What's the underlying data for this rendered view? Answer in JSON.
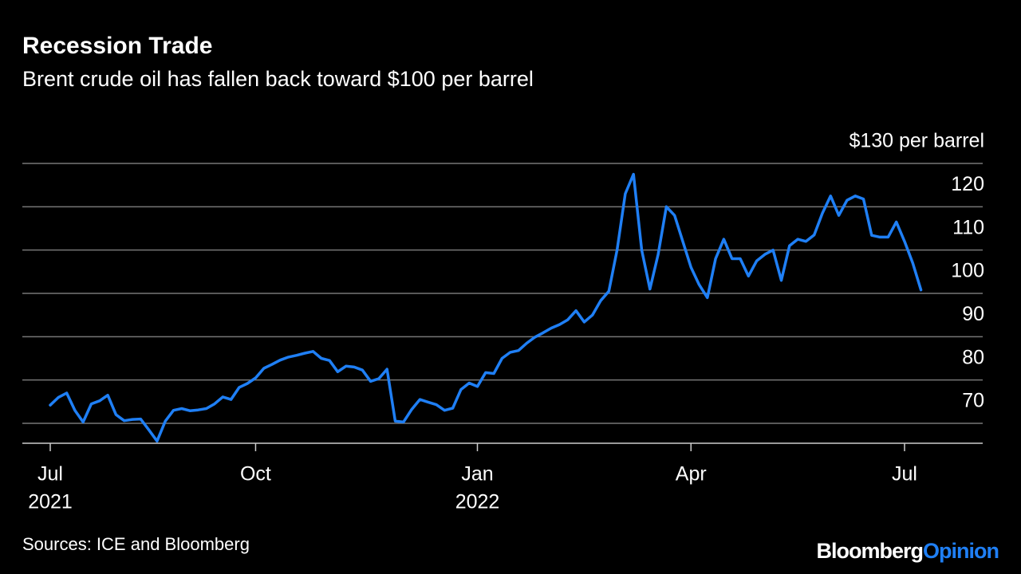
{
  "chart_data": {
    "type": "line",
    "title": "Recession Trade",
    "subtitle": "Brent crude oil has fallen back toward $100 per barrel",
    "source": "Sources: ICE and Bloomberg",
    "brand": "Bloomberg",
    "brand_suffix": "Opinion",
    "categories": [
      "Jul",
      null,
      null,
      null,
      null,
      null,
      null,
      null,
      null,
      null,
      null,
      null,
      null,
      null,
      null,
      null,
      null,
      null,
      null,
      null,
      null,
      null,
      null,
      null,
      null,
      "Oct",
      null,
      null,
      null,
      null,
      null,
      null,
      null,
      null,
      null,
      null,
      null,
      null,
      null,
      null,
      null,
      null,
      null,
      null,
      null,
      null,
      null,
      null,
      null,
      null,
      null,
      null,
      "Jan",
      null,
      null,
      null,
      null,
      null,
      null,
      null,
      null,
      null,
      null,
      null,
      null,
      null,
      null,
      null,
      null,
      null,
      null,
      null,
      null,
      null,
      null,
      null,
      null,
      null,
      "Apr",
      null,
      null,
      null,
      null,
      null,
      null,
      null,
      null,
      null,
      null,
      null,
      null,
      null,
      null,
      null,
      null,
      null,
      null,
      null,
      null,
      null,
      null,
      null,
      null,
      null,
      "Jul",
      null,
      null
    ],
    "years": [
      "2021",
      null,
      null,
      null,
      null,
      null,
      null,
      null,
      null,
      null,
      null,
      null,
      null,
      null,
      null,
      null,
      null,
      null,
      null,
      null,
      null,
      null,
      null,
      null,
      null,
      null,
      null,
      null,
      null,
      null,
      null,
      null,
      null,
      null,
      null,
      null,
      null,
      null,
      null,
      null,
      null,
      null,
      null,
      null,
      null,
      null,
      null,
      null,
      null,
      null,
      null,
      null,
      "2022",
      null,
      null,
      null,
      null,
      null,
      null,
      null,
      null,
      null,
      null,
      null,
      null,
      null,
      null,
      null,
      null,
      null,
      null,
      null,
      null,
      null,
      null,
      null,
      null,
      null,
      null,
      null,
      null,
      null,
      null,
      null,
      null,
      null,
      null,
      null,
      null,
      null,
      null,
      null,
      null,
      null,
      null,
      null,
      null,
      null,
      null,
      null,
      null,
      null,
      null,
      null,
      null,
      null,
      null
    ],
    "series": [
      {
        "name": "Brent crude",
        "color": "#1f7ff5",
        "values": [
          74.2,
          76.0,
          77,
          73.0,
          70.3,
          74.5,
          75.2,
          76.5,
          72,
          70.6,
          70.9,
          71,
          68.5,
          65.9,
          70.5,
          73,
          73.4,
          72.9,
          73.1,
          73.4,
          74.5,
          76.1,
          75.5,
          78.3,
          79.2,
          80.5,
          82.7,
          83.6,
          84.6,
          85.3,
          85.7,
          86.2,
          86.6,
          85,
          84.5,
          81.9,
          83.2,
          83,
          82.3,
          79.7,
          80.3,
          82.5,
          70.5,
          70.3,
          73.2,
          75.5,
          74.9,
          74.3,
          73,
          73.5,
          77.8,
          79.3,
          78.5,
          81.7,
          81.5,
          85,
          86.4,
          86.8,
          88.5,
          89.9,
          90.9,
          92,
          92.8,
          93.9,
          96,
          93.4,
          95,
          98.3,
          100.5,
          110,
          123,
          127.5,
          110,
          101,
          109,
          120,
          118,
          112,
          106,
          102,
          99,
          108,
          112.5,
          108,
          108,
          104,
          107.5,
          109,
          110,
          103,
          111,
          112.5,
          112,
          113.5,
          118.5,
          122.5,
          118,
          121.5,
          122.5,
          121.8,
          113.4,
          113,
          113,
          116.5,
          112,
          107,
          100.8
        ]
      }
    ],
    "ylim": [
      65.4,
      130
    ],
    "yticks": [
      {
        "value": 130,
        "label": "$130 per barrel"
      },
      120,
      110,
      100,
      90,
      80,
      70
    ],
    "grid": true
  }
}
